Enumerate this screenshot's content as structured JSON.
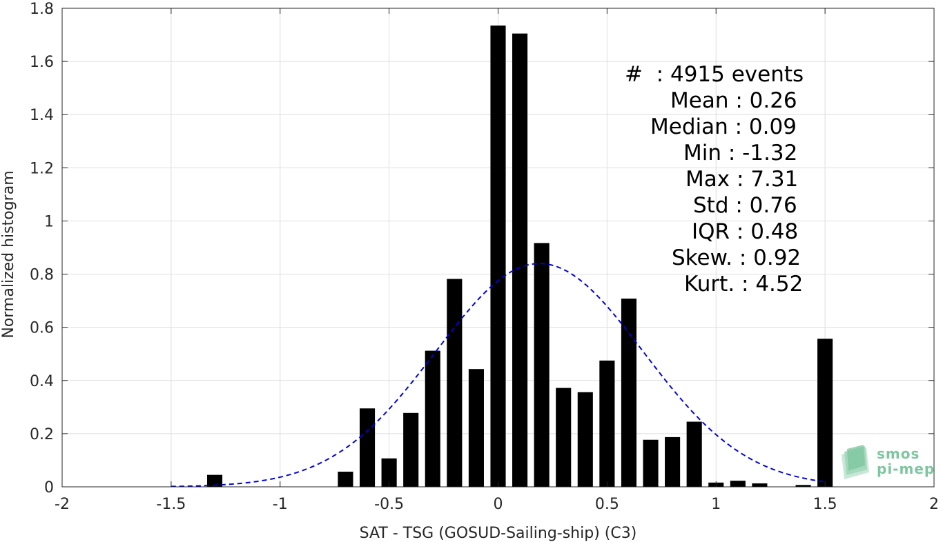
{
  "chart_data": {
    "type": "bar",
    "xlabel": "SAT - TSG (GOSUD-Sailing-ship) (C3)",
    "ylabel": "Normalized histogram",
    "xlim": [
      -2,
      2
    ],
    "ylim": [
      0,
      1.8
    ],
    "xticks": [
      "-2",
      "-1.5",
      "-1",
      "-0.5",
      "0",
      "0.5",
      "1",
      "1.5",
      "2"
    ],
    "yticks": [
      "0",
      "0.2",
      "0.4",
      "0.6",
      "0.8",
      "1",
      "1.2",
      "1.4",
      "1.6",
      "1.8"
    ],
    "grid": true,
    "bar_width": 0.07,
    "bar_color": "#000000",
    "bars": [
      {
        "x": -1.3,
        "y": 0.045
      },
      {
        "x": -0.7,
        "y": 0.057
      },
      {
        "x": -0.6,
        "y": 0.295
      },
      {
        "x": -0.5,
        "y": 0.107
      },
      {
        "x": -0.4,
        "y": 0.278
      },
      {
        "x": -0.3,
        "y": 0.512
      },
      {
        "x": -0.2,
        "y": 0.782
      },
      {
        "x": -0.1,
        "y": 0.443
      },
      {
        "x": 0.0,
        "y": 1.735
      },
      {
        "x": 0.1,
        "y": 1.705
      },
      {
        "x": 0.2,
        "y": 0.917
      },
      {
        "x": 0.3,
        "y": 0.372
      },
      {
        "x": 0.4,
        "y": 0.356
      },
      {
        "x": 0.5,
        "y": 0.475
      },
      {
        "x": 0.6,
        "y": 0.708
      },
      {
        "x": 0.7,
        "y": 0.177
      },
      {
        "x": 0.8,
        "y": 0.187
      },
      {
        "x": 0.9,
        "y": 0.245
      },
      {
        "x": 1.0,
        "y": 0.016
      },
      {
        "x": 1.1,
        "y": 0.023
      },
      {
        "x": 1.2,
        "y": 0.013
      },
      {
        "x": 1.4,
        "y": 0.007
      },
      {
        "x": 1.5,
        "y": 0.557
      }
    ],
    "fit_curve": {
      "style": "dashed",
      "color": "#0000e6",
      "mean": 0.19,
      "std": 0.475,
      "peak": 0.84,
      "x_range": [
        -1.5,
        1.5
      ]
    }
  },
  "stats": [
    "#  : 4915 events",
    "Mean : 0.26",
    "Median : 0.09",
    "Min : -1.32",
    "Max : 7.31",
    "Std : 0.76",
    "IQR : 0.48",
    "Skew. : 0.92",
    "Kurt. : 4.52"
  ],
  "logo": {
    "line1": "smos",
    "line2": "pi-mep",
    "color": "#7fc6a0"
  }
}
